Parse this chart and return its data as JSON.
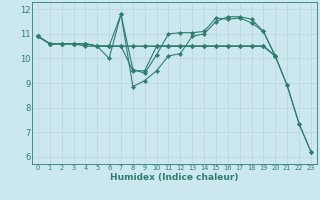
{
  "xlabel": "Humidex (Indice chaleur)",
  "bg_color": "#cce8ef",
  "grid_color": "#c0d8df",
  "line_color": "#2e7d6e",
  "xlim": [
    -0.5,
    23.5
  ],
  "ylim": [
    5.7,
    12.3
  ],
  "xticks": [
    0,
    1,
    2,
    3,
    4,
    5,
    6,
    7,
    8,
    9,
    10,
    11,
    12,
    13,
    14,
    15,
    16,
    17,
    18,
    19,
    20,
    21,
    22,
    23
  ],
  "yticks": [
    6,
    7,
    8,
    9,
    10,
    11,
    12
  ],
  "series": [
    [
      10.9,
      10.6,
      10.6,
      10.6,
      10.6,
      10.5,
      10.0,
      11.8,
      8.85,
      9.1,
      9.5,
      10.1,
      10.2,
      10.9,
      11.0,
      11.5,
      11.7,
      11.7,
      11.6,
      11.1,
      10.1,
      8.9,
      7.35,
      6.2
    ],
    [
      10.9,
      10.6,
      10.6,
      10.6,
      10.5,
      10.5,
      10.5,
      11.8,
      9.55,
      9.4,
      10.15,
      11.0,
      11.05,
      11.05,
      11.1,
      11.65,
      11.6,
      11.65,
      11.45,
      11.1,
      10.1,
      8.9,
      7.35,
      6.2
    ],
    [
      10.9,
      10.6,
      10.6,
      10.6,
      10.6,
      10.5,
      10.5,
      10.5,
      10.5,
      10.5,
      10.5,
      10.5,
      10.5,
      10.5,
      10.5,
      10.5,
      10.5,
      10.5,
      10.5,
      10.5,
      10.1,
      null,
      null,
      null
    ],
    [
      10.9,
      10.6,
      10.6,
      10.6,
      10.6,
      10.5,
      10.5,
      10.5,
      9.5,
      9.5,
      10.5,
      10.5,
      10.5,
      10.5,
      10.5,
      10.5,
      10.5,
      10.5,
      10.5,
      10.5,
      10.1,
      null,
      null,
      null
    ]
  ]
}
